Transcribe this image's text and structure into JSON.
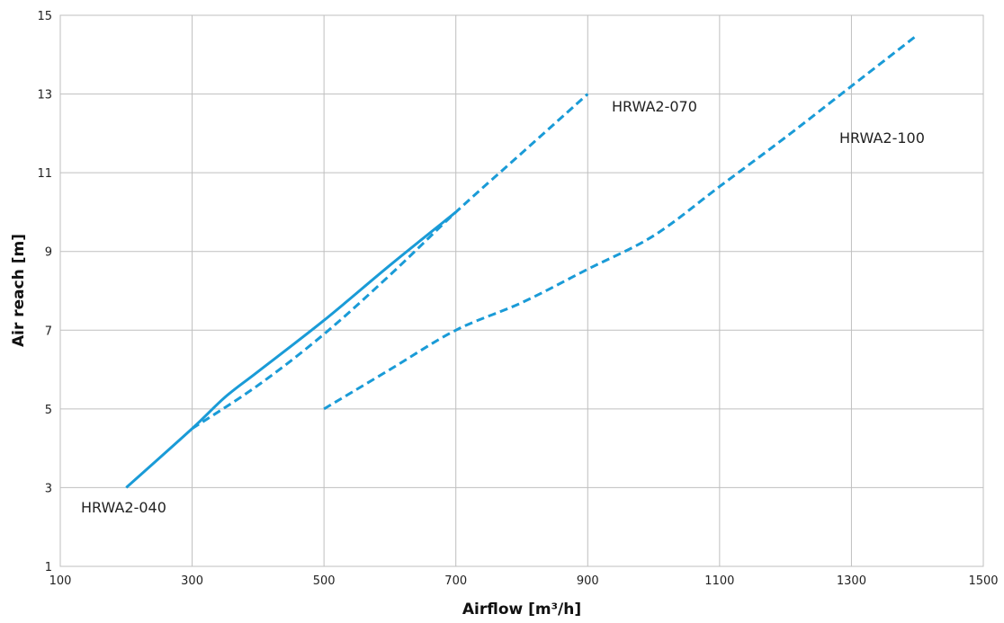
{
  "chart_data": {
    "type": "line",
    "title": "",
    "xlabel": "Airflow [m³/h]",
    "ylabel": "Air reach  [m]",
    "xlim": [
      100,
      1500
    ],
    "ylim": [
      1,
      15
    ],
    "x_ticks": [
      100,
      300,
      500,
      700,
      900,
      1100,
      1300,
      1500
    ],
    "y_ticks": [
      1,
      3,
      5,
      7,
      9,
      11,
      13,
      15
    ],
    "grid": true,
    "series": [
      {
        "name": "HRWA2-040",
        "style": "solid",
        "color": "#1a9bd7",
        "x": [
          200,
          300,
          350,
          400,
          500,
          600,
          700
        ],
        "y": [
          3.0,
          4.5,
          5.3,
          5.95,
          7.25,
          8.65,
          10.0
        ]
      },
      {
        "name": "HRWA2-070",
        "style": "dashed",
        "color": "#1a9bd7",
        "x": [
          300,
          400,
          500,
          600,
          700,
          800,
          900
        ],
        "y": [
          4.5,
          5.6,
          6.9,
          8.4,
          10.0,
          11.5,
          13.0
        ]
      },
      {
        "name": "HRWA2-100",
        "style": "dashed",
        "color": "#1a9bd7",
        "x": [
          500,
          600,
          700,
          800,
          900,
          1000,
          1100,
          1200,
          1300,
          1400
        ],
        "y": [
          5.0,
          6.0,
          7.0,
          7.7,
          8.55,
          9.4,
          10.65,
          11.9,
          13.2,
          14.5
        ]
      }
    ]
  }
}
